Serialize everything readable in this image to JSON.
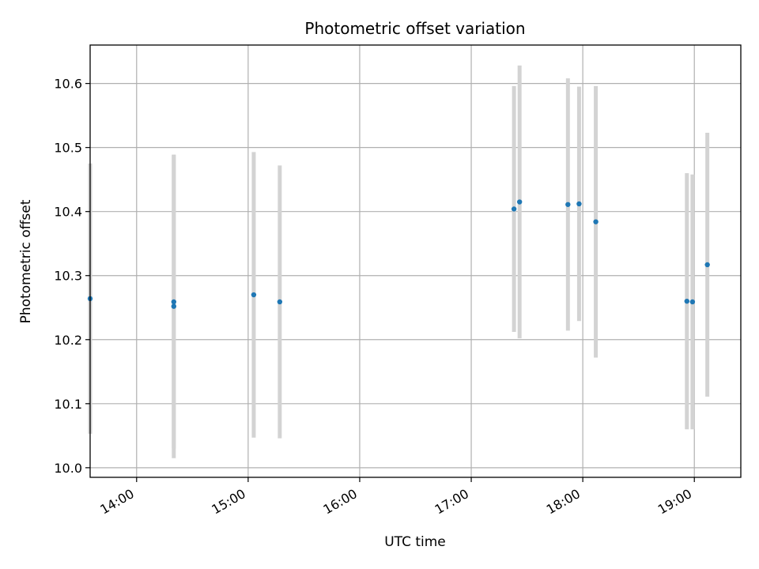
{
  "chart_data": {
    "type": "scatter",
    "title": "Photometric offset variation",
    "xlabel": "UTC time",
    "ylabel": "Photometric offset",
    "x_unit": "UTC time (HH:MM)",
    "xlim": [
      "13:35",
      "19:25"
    ],
    "ylim": [
      9.985,
      10.66
    ],
    "grid": true,
    "x_ticks": [
      "14:00",
      "15:00",
      "16:00",
      "17:00",
      "18:00",
      "19:00"
    ],
    "y_ticks": [
      10.0,
      10.1,
      10.2,
      10.3,
      10.4,
      10.5,
      10.6
    ],
    "y_tick_labels": [
      "10.0",
      "10.1",
      "10.2",
      "10.3",
      "10.4",
      "10.5",
      "10.6"
    ],
    "marker_color": "#1f77b4",
    "errorbar_color": "#d3d3d3",
    "points": [
      {
        "x": "13:35",
        "y": 10.264,
        "yerr": 0.211
      },
      {
        "x": "14:20",
        "y": 10.252,
        "yerr": 0.237
      },
      {
        "x": "14:20",
        "y": 10.259,
        "yerr": 0.229
      },
      {
        "x": "15:03",
        "y": 10.27,
        "yerr": 0.223
      },
      {
        "x": "15:17",
        "y": 10.259,
        "yerr": 0.213
      },
      {
        "x": "17:23",
        "y": 10.404,
        "yerr": 0.192
      },
      {
        "x": "17:26",
        "y": 10.415,
        "yerr": 0.213
      },
      {
        "x": "17:52",
        "y": 10.411,
        "yerr": 0.197
      },
      {
        "x": "17:58",
        "y": 10.412,
        "yerr": 0.183
      },
      {
        "x": "18:07",
        "y": 10.384,
        "yerr": 0.212
      },
      {
        "x": "18:56",
        "y": 10.26,
        "yerr": 0.2
      },
      {
        "x": "18:59",
        "y": 10.259,
        "yerr": 0.199
      },
      {
        "x": "19:07",
        "y": 10.317,
        "yerr": 0.206
      }
    ]
  }
}
